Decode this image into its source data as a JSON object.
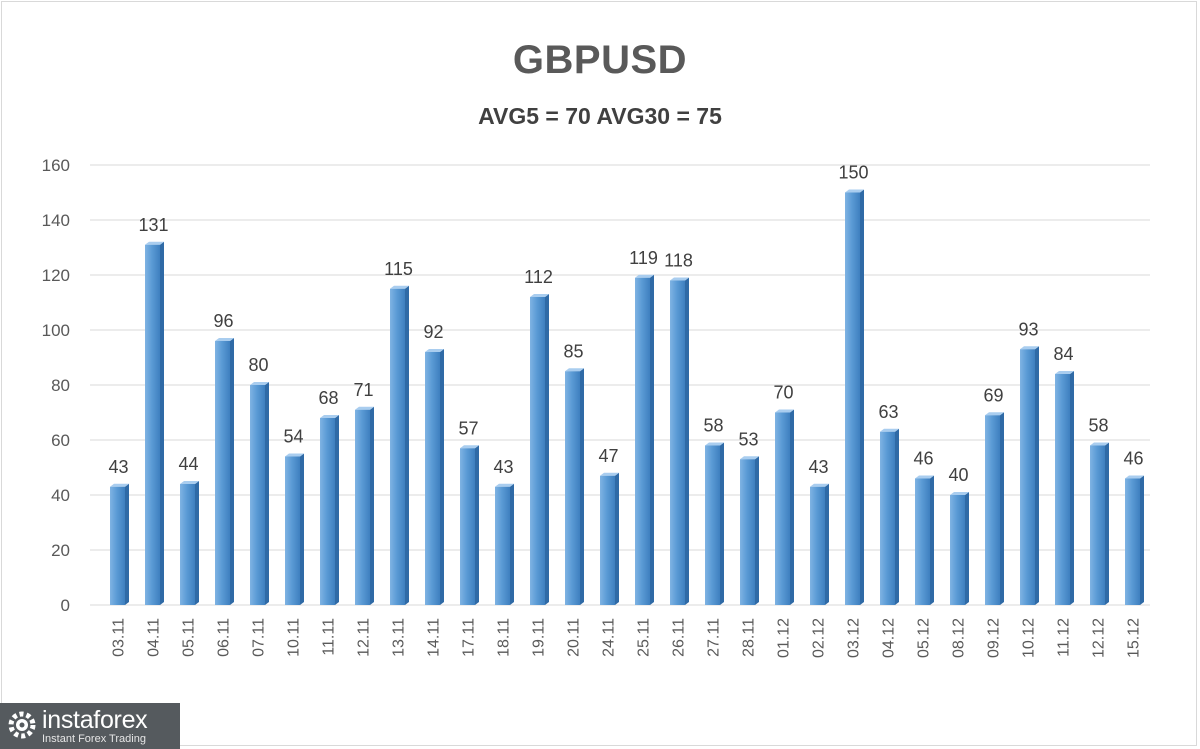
{
  "chart_data": {
    "type": "bar",
    "title": "GBPUSD",
    "subtitle": "AVG5 = 70 AVG30 = 75",
    "xlabel": "",
    "ylabel": "",
    "ylim": [
      0,
      160
    ],
    "yticks": [
      0,
      20,
      40,
      60,
      80,
      100,
      120,
      140,
      160
    ],
    "grid": true,
    "legend": "none",
    "bar_color": "#5b9bd5",
    "categories": [
      "03.11",
      "04.11",
      "05.11",
      "06.11",
      "07.11",
      "10.11",
      "11.11",
      "12.11",
      "13.11",
      "14.11",
      "17.11",
      "18.11",
      "19.11",
      "20.11",
      "24.11",
      "25.11",
      "26.11",
      "27.11",
      "28.11",
      "01.12",
      "02.12",
      "03.12",
      "04.12",
      "05.12",
      "08.12",
      "09.12",
      "10.12",
      "11.12",
      "12.12",
      "15.12"
    ],
    "values": [
      43,
      131,
      44,
      96,
      80,
      54,
      68,
      71,
      115,
      92,
      57,
      43,
      112,
      85,
      47,
      119,
      118,
      58,
      53,
      70,
      43,
      150,
      63,
      46,
      40,
      69,
      93,
      84,
      58,
      46
    ]
  },
  "watermark": {
    "name": "instaforex",
    "tagline": "Instant Forex Trading"
  }
}
